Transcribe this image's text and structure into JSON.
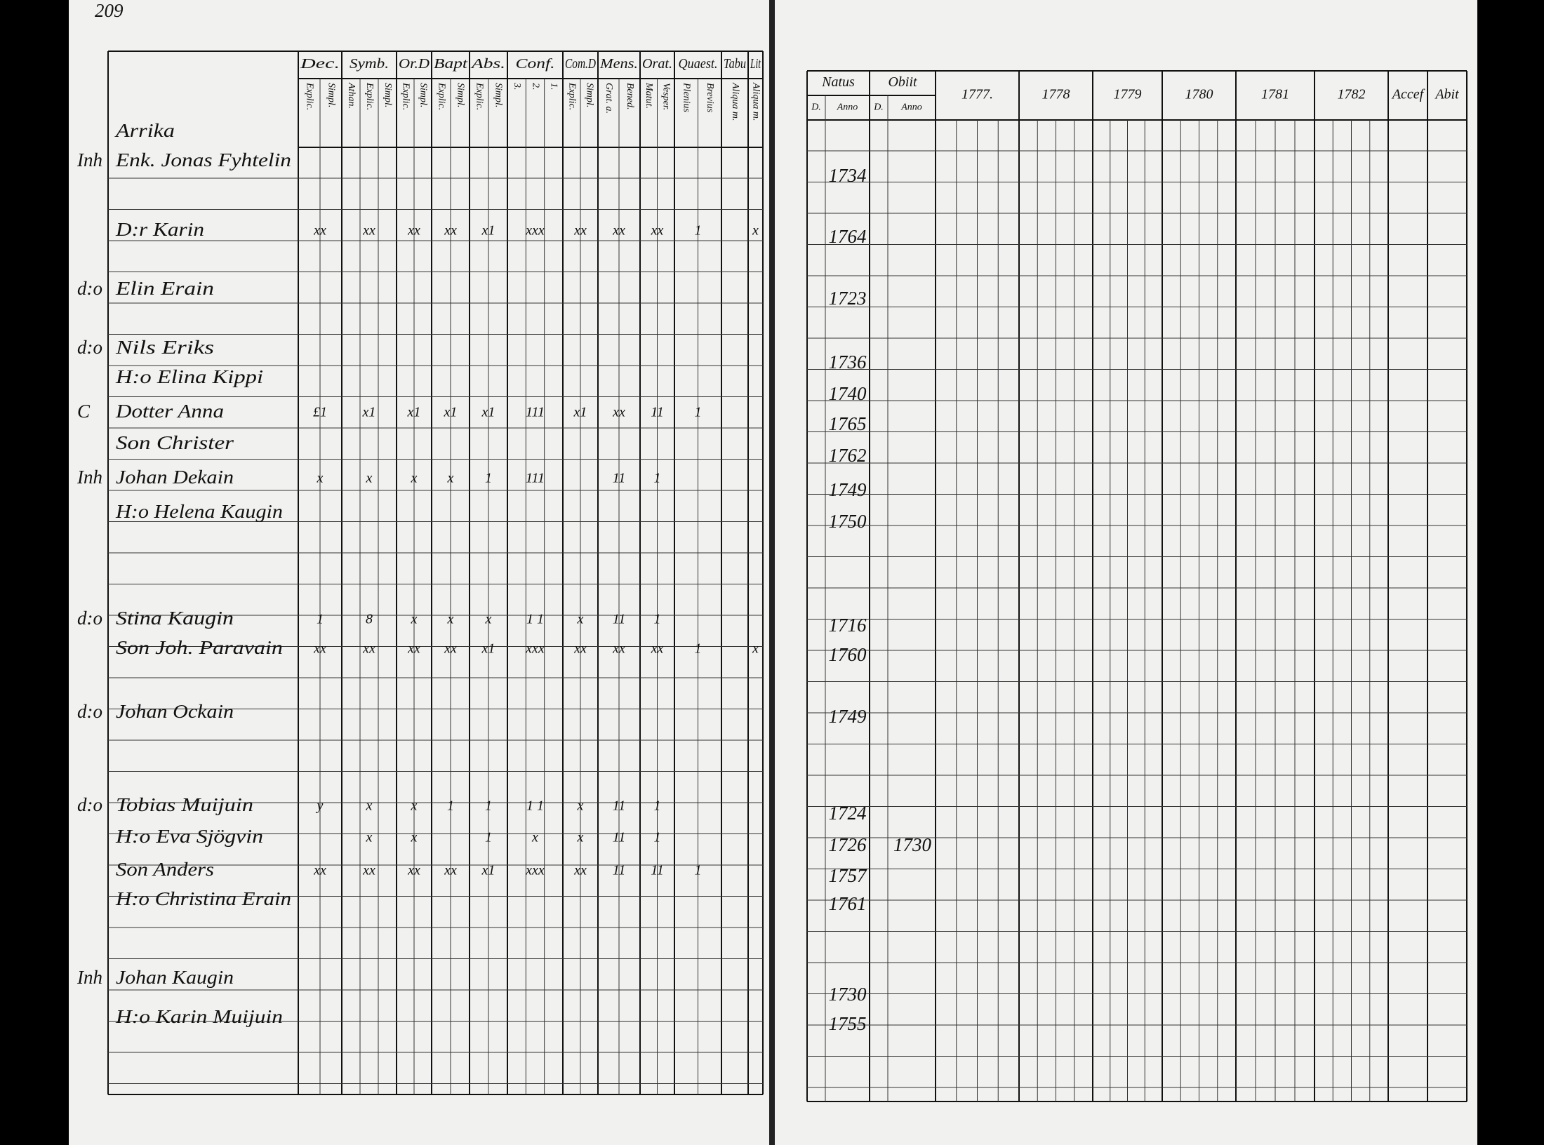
{
  "page_number": "209",
  "left_columns": [
    {
      "title": "Dec.",
      "sub": [
        "Explic.",
        "Simpl."
      ]
    },
    {
      "title": "Symb.",
      "sub": [
        "Athan.",
        "Explic.",
        "Simpl."
      ]
    },
    {
      "title": "Or.D",
      "sub": [
        "Explic.",
        "Simpl."
      ]
    },
    {
      "title": "Bapt",
      "sub": [
        "Explic.",
        "Simpl."
      ]
    },
    {
      "title": "Abs.",
      "sub": [
        "Explic.",
        "Simpl."
      ]
    },
    {
      "title": "Conf.",
      "sub": [
        "3.",
        "2.",
        "1."
      ]
    },
    {
      "title": "Com.D",
      "sub": [
        "Explic.",
        "Simpl."
      ]
    },
    {
      "title": "Mens.",
      "sub": [
        "Grat. a.",
        "Bened."
      ]
    },
    {
      "title": "Orat.",
      "sub": [
        "Matut.",
        "Vesper."
      ]
    },
    {
      "title": "Quaest.",
      "sub": [
        "Plenius",
        "Brevius"
      ]
    },
    {
      "title": "Tabu",
      "sub": [
        "Aliqua m."
      ]
    },
    {
      "title": "Lit",
      "sub": [
        "Aliqua m."
      ]
    }
  ],
  "right_columns": [
    {
      "title": "Natus",
      "sub": [
        "D.",
        "Anno"
      ]
    },
    {
      "title": "Obiit",
      "sub": [
        "D.",
        "Anno"
      ]
    },
    {
      "title": "1777."
    },
    {
      "title": "1778"
    },
    {
      "title": "1779"
    },
    {
      "title": "1780"
    },
    {
      "title": "1781"
    },
    {
      "title": "1782"
    },
    {
      "title": "Accef"
    },
    {
      "title": "Abit"
    }
  ],
  "left_rows": [
    {
      "name": "Arrika"
    },
    {
      "prefix": "Inh",
      "name": "Enk. Jonas Fyhtelin"
    },
    {
      "name": "D:r Karin",
      "marks": [
        "xx",
        "xx",
        "xx",
        "xx",
        "x1",
        "xxx",
        "xx",
        "xx",
        "xx",
        "1",
        "",
        "x"
      ]
    },
    {
      "prefix": "d:o",
      "name": "Elin Erain"
    },
    {
      "prefix": "d:o",
      "name": "Nils Eriks"
    },
    {
      "name": "H:o Elina Kippi"
    },
    {
      "prefix": "C",
      "name": "Dotter Anna",
      "marks": [
        "£1",
        "x1",
        "x1",
        "x1",
        "x1",
        "111",
        "x1",
        "xx",
        "11",
        "1"
      ]
    },
    {
      "name": "Son Christer"
    },
    {
      "prefix": "Inh",
      "name": "Johan Dekain",
      "marks": [
        "x",
        "x",
        "x",
        "x",
        "1",
        "111",
        "",
        "11",
        "1"
      ]
    },
    {
      "name": "H:o Helena Kaugin"
    },
    {
      "prefix": "d:o",
      "name": "Stina Kaugin",
      "marks": [
        "1",
        "8",
        "x",
        "x",
        "x",
        "1 1",
        "x",
        "11",
        "1"
      ]
    },
    {
      "name": "Son Joh. Paravain",
      "marks": [
        "xx",
        "xx",
        "xx",
        "xx",
        "x1",
        "xxx",
        "xx",
        "xx",
        "xx",
        "1",
        "",
        "x"
      ]
    },
    {
      "prefix": "d:o",
      "name": "Johan Ockain"
    },
    {
      "prefix": "d:o",
      "name": "Tobias Muijuin",
      "marks": [
        "y",
        "x",
        "x",
        "1",
        "1",
        "1 1",
        "x",
        "11",
        "1"
      ]
    },
    {
      "name": "H:o Eva Sjögvin",
      "marks": [
        "",
        "x",
        "x",
        "",
        "1",
        "x",
        "x",
        "11",
        "1"
      ]
    },
    {
      "name": "Son Anders",
      "marks": [
        "xx",
        "xx",
        "xx",
        "xx",
        "x1",
        "xxx",
        "xx",
        "11",
        "11",
        "1"
      ]
    },
    {
      "name": "H:o Christina Erain"
    },
    {
      "prefix": "Inh",
      "name": "Johan Kaugin"
    },
    {
      "name": "H:o Karin Muijuin"
    }
  ],
  "right_rows": [
    {
      "born": "1734"
    },
    {
      "born": "1764"
    },
    {
      "born": "1723"
    },
    {
      "born": "1736"
    },
    {
      "born": "1740"
    },
    {
      "born": "1765"
    },
    {
      "born": "1762"
    },
    {
      "born": "1749"
    },
    {
      "born": "1750"
    },
    {
      "born": "1716"
    },
    {
      "born": "1760"
    },
    {
      "born": "1749"
    },
    {
      "born": "1724"
    },
    {
      "born": "1726",
      "died": "1730"
    },
    {
      "born": "1757"
    },
    {
      "born": "1761"
    },
    {
      "born": "1730"
    },
    {
      "born": "1755"
    }
  ]
}
